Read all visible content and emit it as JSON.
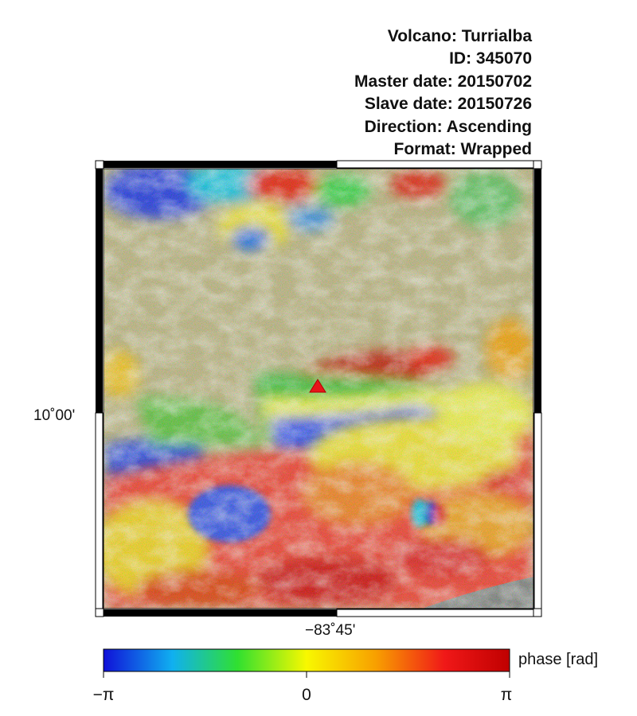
{
  "metadata": [
    {
      "label": "Volcano",
      "value": "Turrialba"
    },
    {
      "label": "ID",
      "value": "345070"
    },
    {
      "label": "Master date",
      "value": "20150702"
    },
    {
      "label": "Slave date",
      "value": "20150726"
    },
    {
      "label": "Direction",
      "value": "Ascending"
    },
    {
      "label": "Format",
      "value": "Wrapped"
    }
  ],
  "map": {
    "latitude_label": "10˚00'",
    "longitude_label": "−83˚45'",
    "volcano_marker_color": "#e8141a"
  },
  "colorbar": {
    "title": "phase [rad]",
    "min_label": "−π",
    "mid_label": "0",
    "max_label": "π",
    "colors": [
      "#1010d8",
      "#10b0f0",
      "#30e030",
      "#f8f800",
      "#f8a000",
      "#f01818",
      "#c00000"
    ]
  }
}
